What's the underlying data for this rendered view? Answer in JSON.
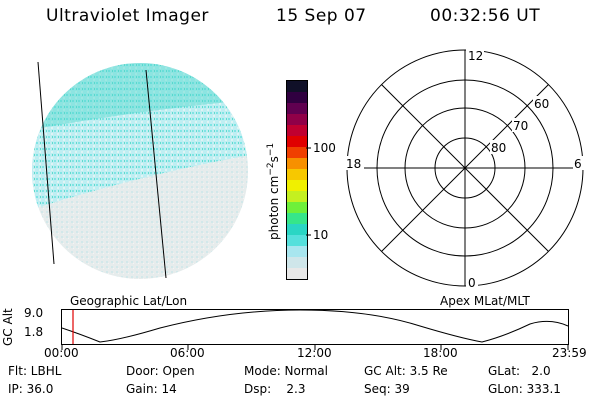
{
  "header": {
    "instrument": "Ultraviolet Imager",
    "date": "15 Sep 07",
    "time": "00:32:56 UT"
  },
  "left_panel": {
    "label": "Geographic Lat/Lon"
  },
  "colorbar": {
    "unit_label": "photon cm",
    "unit_exp1": "−2",
    "unit_mid": "s",
    "unit_exp2": "−1",
    "tick_labels": [
      "100",
      "10"
    ],
    "colors": [
      "#e8e8e8",
      "#cfe6ea",
      "#a8e6ef",
      "#55e0dc",
      "#2ad6c4",
      "#36e68a",
      "#6ef03a",
      "#c4f020",
      "#f0f000",
      "#f7c800",
      "#f79000",
      "#f04000",
      "#e00000",
      "#c00030",
      "#900048",
      "#600050",
      "#300040",
      "#101028"
    ]
  },
  "polar_plot": {
    "label": "Apex MLat/MLT",
    "mlt_labels": {
      "top": "12",
      "left": "18",
      "right": "6",
      "bottom": "0"
    },
    "lat_labels": [
      "60",
      "70",
      "80"
    ]
  },
  "gc_alt_panel": {
    "ylabel": "GC Alt",
    "y_ticks": [
      "9.0",
      "1.8"
    ],
    "x_ticks": [
      "00:00",
      "06:00",
      "12:00",
      "18:00",
      "23:59"
    ]
  },
  "info": {
    "flt": "Flt: LBHL",
    "door": "Door: Open",
    "mode": "Mode: Normal",
    "gcalt": "GC Alt: 3.5 Re",
    "glat": "GLat:   2.0",
    "ip": "IP: 36.0",
    "gain": "Gain: 14",
    "dsp": "Dsp:    2.3",
    "seq": "Seq: 39",
    "glon": "GLon: 333.1"
  }
}
